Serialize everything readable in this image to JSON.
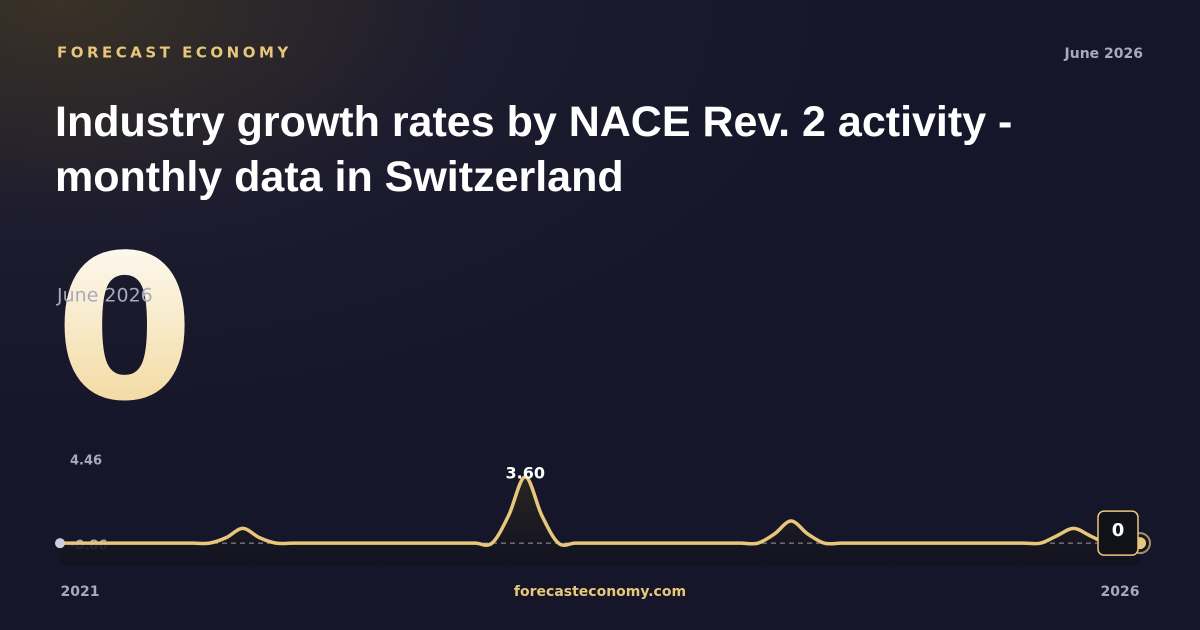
{
  "brand": "FORECAST ECONOMY",
  "date": "June 2026",
  "footer": "forecasteconomy.com",
  "chart_data": {
    "type": "line",
    "title": "Industry growth rates by NACE Rev. 2 activity - monthly data in Switzerland",
    "subtitle": "June 2026",
    "x_start_label": "2021",
    "x_end_label": "2026",
    "color": "#e8c77a",
    "ylim": [
      -0.86,
      4.46
    ],
    "yticks": [
      -0.86,
      4.46
    ],
    "values": [
      0,
      0,
      0,
      0,
      0,
      0,
      0,
      0,
      0,
      0,
      0.3,
      0.8,
      0.3,
      0,
      0,
      0,
      0,
      0,
      0,
      0,
      0,
      0,
      0,
      0,
      0,
      0,
      0,
      1.5,
      3.6,
      1.5,
      0,
      0,
      0,
      0,
      0,
      0,
      0,
      0,
      0,
      0,
      0,
      0,
      0,
      0.5,
      1.2,
      0.5,
      0,
      0,
      0,
      0,
      0,
      0,
      0,
      0,
      0,
      0,
      0,
      0,
      0,
      0,
      0.4,
      0.8,
      0.4,
      0,
      0,
      0
    ],
    "value_labels": [
      null,
      null,
      null,
      null,
      null,
      null,
      null,
      null,
      null,
      null,
      null,
      null,
      null,
      null,
      null,
      null,
      null,
      null,
      null,
      null,
      null,
      null,
      null,
      null,
      null,
      null,
      null,
      null,
      "3.60",
      null,
      null,
      null,
      null,
      null,
      null,
      null,
      null,
      null,
      null,
      null,
      null,
      null,
      null,
      null,
      null,
      null,
      null,
      null,
      null,
      null,
      null,
      null,
      null,
      null,
      null,
      null,
      null,
      null,
      null,
      null,
      null,
      null,
      null,
      null,
      null,
      "0"
    ]
  }
}
